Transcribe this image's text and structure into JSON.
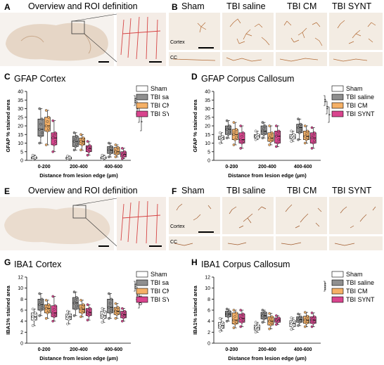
{
  "figure": {
    "panels": {
      "A": {
        "letter": "A",
        "title": "Overview and ROI definition"
      },
      "B": {
        "letter": "B",
        "labels": [
          "Sham",
          "TBI saline",
          "TBI CM",
          "TBI SYNT"
        ],
        "row_labels": [
          "Cortex",
          "CC"
        ]
      },
      "E": {
        "letter": "E",
        "title": "Overview and ROI definition"
      },
      "F": {
        "letter": "F",
        "labels": [
          "Sham",
          "TBI saline",
          "TBI CM",
          "TBI SYNT"
        ],
        "row_labels": [
          "Cortex",
          "CC"
        ]
      }
    },
    "groups": [
      "Sham",
      "TBI saline",
      "TBI CM",
      "TBI SYNT"
    ],
    "colors": {
      "Sham": "#ffffff",
      "TBI saline": "#8f8f8f",
      "TBI CM": "#f5b066",
      "TBI SYNT": "#d9458e",
      "roi_red": "#d64545"
    }
  },
  "chart_data": [
    {
      "panel": "C",
      "type": "box",
      "title": "GFAP Cortex",
      "ylabel": "GFAP % stained area",
      "xlabel": "Distance from lesion edge (µm)",
      "categories": [
        "0-200",
        "200-400",
        "400-600"
      ],
      "ylim": [
        0,
        40
      ],
      "yticks": [
        0,
        5,
        10,
        15,
        20,
        25,
        30,
        35,
        40
      ],
      "series": [
        {
          "name": "Sham",
          "values": [
            {
              "min": 0.5,
              "q1": 1,
              "med": 1.5,
              "q3": 2,
              "max": 3
            },
            {
              "min": 0.3,
              "q1": 0.8,
              "med": 1.2,
              "q3": 1.8,
              "max": 2.5
            },
            {
              "min": 0.5,
              "q1": 1,
              "med": 1.5,
              "q3": 2,
              "max": 3
            }
          ]
        },
        {
          "name": "TBI saline",
          "values": [
            {
              "min": 10,
              "q1": 14,
              "med": 18,
              "q3": 24,
              "max": 30
            },
            {
              "min": 6,
              "q1": 8,
              "med": 11,
              "q3": 14,
              "max": 16
            },
            {
              "min": 2,
              "q1": 4,
              "med": 6,
              "q3": 8,
              "max": 10
            }
          ]
        },
        {
          "name": "TBI CM",
          "values": [
            {
              "min": 9,
              "q1": 17,
              "med": 20,
              "q3": 25,
              "max": 29
            },
            {
              "min": 6,
              "q1": 9,
              "med": 11,
              "q3": 13,
              "max": 15
            },
            {
              "min": 2,
              "q1": 3.5,
              "med": 5,
              "q3": 7.5,
              "max": 9
            }
          ]
        },
        {
          "name": "TBI SYNT",
          "values": [
            {
              "min": 5,
              "q1": 9,
              "med": 13,
              "q3": 16,
              "max": 23
            },
            {
              "min": 3,
              "q1": 5,
              "med": 7,
              "q3": 8.5,
              "max": 11
            },
            {
              "min": 1,
              "q1": 2,
              "med": 3.5,
              "q3": 5,
              "max": 7
            }
          ]
        }
      ],
      "significance": [
        "***",
        "**",
        "*",
        "*"
      ]
    },
    {
      "panel": "D",
      "type": "box",
      "title": "GFAP Corpus Callosum",
      "ylabel": "GFAP % stained area",
      "xlabel": "Distance from lesion edge (µm)",
      "categories": [
        "0-200",
        "200-400",
        "400-600"
      ],
      "ylim": [
        0,
        40
      ],
      "yticks": [
        0,
        5,
        10,
        15,
        20,
        25,
        30,
        35,
        40
      ],
      "series": [
        {
          "name": "Sham",
          "values": [
            {
              "min": 10,
              "q1": 12,
              "med": 13,
              "q3": 14,
              "max": 16
            },
            {
              "min": 12,
              "q1": 13,
              "med": 14,
              "q3": 15,
              "max": 17
            },
            {
              "min": 11,
              "q1": 12.5,
              "med": 13.5,
              "q3": 15,
              "max": 17
            }
          ]
        },
        {
          "name": "TBI saline",
          "values": [
            {
              "min": 13,
              "q1": 15,
              "med": 18,
              "q3": 20,
              "max": 23
            },
            {
              "min": 13,
              "q1": 15,
              "med": 17,
              "q3": 20,
              "max": 22
            },
            {
              "min": 12,
              "q1": 16,
              "med": 19,
              "q3": 21,
              "max": 24
            }
          ]
        },
        {
          "name": "TBI CM",
          "values": [
            {
              "min": 9,
              "q1": 12,
              "med": 15,
              "q3": 18,
              "max": 22
            },
            {
              "min": 9,
              "q1": 11,
              "med": 13,
              "q3": 16,
              "max": 20
            },
            {
              "min": 10,
              "q1": 12,
              "med": 14,
              "q3": 17,
              "max": 20
            }
          ]
        },
        {
          "name": "TBI SYNT",
          "values": [
            {
              "min": 7,
              "q1": 10,
              "med": 12,
              "q3": 16,
              "max": 20
            },
            {
              "min": 8,
              "q1": 10,
              "med": 14,
              "q3": 17,
              "max": 20
            },
            {
              "min": 7,
              "q1": 10,
              "med": 13,
              "q3": 16,
              "max": 19
            }
          ]
        }
      ],
      "significance": [
        "**",
        "**",
        "*"
      ]
    },
    {
      "panel": "G",
      "type": "box",
      "title": "IBA1 Cortex",
      "ylabel": "IBA1% stained area",
      "xlabel": "Distance from lesion edge (µm)",
      "categories": [
        "0-200",
        "200-400",
        "400-600"
      ],
      "ylim": [
        0,
        12
      ],
      "yticks": [
        0,
        2,
        4,
        6,
        8,
        10,
        12
      ],
      "series": [
        {
          "name": "Sham",
          "values": [
            {
              "min": 3.2,
              "q1": 4.2,
              "med": 4.8,
              "q3": 5.5,
              "max": 6.2
            },
            {
              "min": 3.5,
              "q1": 4.3,
              "med": 4.8,
              "q3": 5.3,
              "max": 5.8
            },
            {
              "min": 3.8,
              "q1": 4.5,
              "med": 5,
              "q3": 5.8,
              "max": 6.3
            }
          ]
        },
        {
          "name": "TBI saline",
          "values": [
            {
              "min": 5,
              "q1": 6,
              "med": 7,
              "q3": 8,
              "max": 9
            },
            {
              "min": 5,
              "q1": 6.2,
              "med": 7.3,
              "q3": 8.3,
              "max": 9.3
            },
            {
              "min": 4.5,
              "q1": 5.5,
              "med": 6.5,
              "q3": 8,
              "max": 9
            }
          ]
        },
        {
          "name": "TBI CM",
          "values": [
            {
              "min": 4.5,
              "q1": 5.5,
              "med": 6.3,
              "q3": 7,
              "max": 7.8
            },
            {
              "min": 4.8,
              "q1": 5.5,
              "med": 6.2,
              "q3": 7,
              "max": 7.8
            },
            {
              "min": 4.5,
              "q1": 5.2,
              "med": 5.8,
              "q3": 6.5,
              "max": 7.2
            }
          ]
        },
        {
          "name": "TBI SYNT",
          "values": [
            {
              "min": 4,
              "q1": 4.8,
              "med": 5.5,
              "q3": 6.8,
              "max": 8.5
            },
            {
              "min": 4.2,
              "q1": 5,
              "med": 5.6,
              "q3": 6.3,
              "max": 7
            },
            {
              "min": 4,
              "q1": 4.6,
              "med": 5.2,
              "q3": 5.8,
              "max": 6.3
            }
          ]
        }
      ],
      "significance": [
        "***",
        "***",
        "0.08"
      ]
    },
    {
      "panel": "H",
      "type": "box",
      "title": "IBA1 Corpus Callosum",
      "ylabel": "IBA1% stained area",
      "xlabel": "Distance from lesion edge (µm)",
      "categories": [
        "0-200",
        "200-400",
        "400-600"
      ],
      "ylim": [
        0,
        12
      ],
      "yticks": [
        0,
        2,
        4,
        6,
        8,
        10,
        12
      ],
      "series": [
        {
          "name": "Sham",
          "values": [
            {
              "min": 2.2,
              "q1": 2.7,
              "med": 3.2,
              "q3": 3.8,
              "max": 4.5
            },
            {
              "min": 2,
              "q1": 2.4,
              "med": 2.8,
              "q3": 3.3,
              "max": 3.8
            },
            {
              "min": 2.5,
              "q1": 3,
              "med": 3.6,
              "q3": 4.1,
              "max": 4.6
            }
          ]
        },
        {
          "name": "TBI saline",
          "values": [
            {
              "min": 4,
              "q1": 4.8,
              "med": 5.3,
              "q3": 5.8,
              "max": 6.2
            },
            {
              "min": 3.8,
              "q1": 4.4,
              "med": 5,
              "q3": 5.6,
              "max": 6
            },
            {
              "min": 3.2,
              "q1": 3.8,
              "med": 4.3,
              "q3": 4.8,
              "max": 5.3
            }
          ]
        },
        {
          "name": "TBI CM",
          "values": [
            {
              "min": 2.8,
              "q1": 3.5,
              "med": 4.2,
              "q3": 5.5,
              "max": 6
            },
            {
              "min": 2.6,
              "q1": 3.3,
              "med": 4,
              "q3": 4.8,
              "max": 5.4
            },
            {
              "min": 3,
              "q1": 3.6,
              "med": 4.2,
              "q3": 4.9,
              "max": 5.6
            }
          ]
        },
        {
          "name": "TBI SYNT",
          "values": [
            {
              "min": 3,
              "q1": 3.8,
              "med": 4.5,
              "q3": 5.3,
              "max": 6
            },
            {
              "min": 3.4,
              "q1": 3.8,
              "med": 4.2,
              "q3": 4.6,
              "max": 5
            },
            {
              "min": 3,
              "q1": 3.6,
              "med": 4.2,
              "q3": 4.8,
              "max": 5.5
            }
          ]
        }
      ],
      "significance": [
        "****"
      ]
    }
  ]
}
